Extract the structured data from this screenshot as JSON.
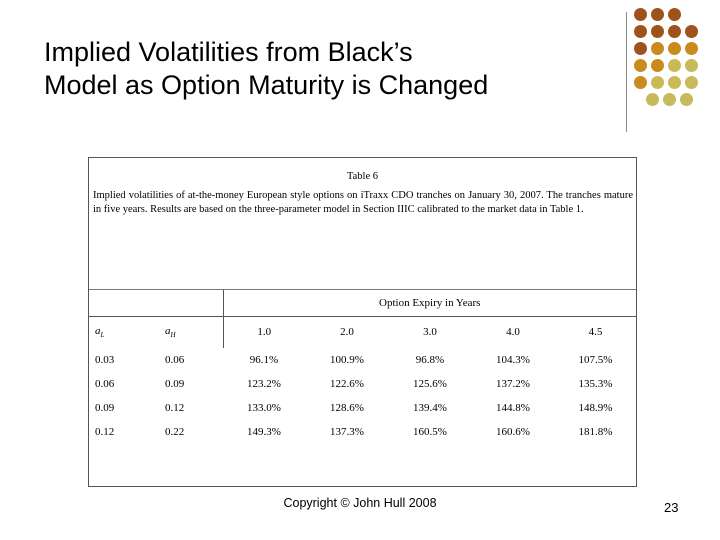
{
  "slide": {
    "title_line1": "Implied Volatilities from Black’s",
    "title_line2": "Model as Option Maturity is Changed",
    "footer": "Copyright © John Hull 2008",
    "page_number": "23"
  },
  "decoration": {
    "dot_colors": [
      "#a0521c",
      "#c98a1e",
      "#c8ba58"
    ]
  },
  "table": {
    "caption_title": "Table 6",
    "caption_text": "Implied volatilities of at-the-money European style options on iTraxx CDO tranches on January 30, 2007. The tranches mature in five years. Results are based on the three-parameter model in Section IIIC calibrated to the market data in Table 1.",
    "group_header": "Option Expiry in Years",
    "col_aL": {
      "symbol": "a",
      "sub": "L"
    },
    "col_aH": {
      "symbol": "a",
      "sub": "H"
    },
    "expiry_headers": [
      "1.0",
      "2.0",
      "3.0",
      "4.0",
      "4.5"
    ],
    "rows": [
      {
        "aL": "0.03",
        "aH": "0.06",
        "values": [
          "96.1%",
          "100.9%",
          "96.8%",
          "104.3%",
          "107.5%"
        ]
      },
      {
        "aL": "0.06",
        "aH": "0.09",
        "values": [
          "123.2%",
          "122.6%",
          "125.6%",
          "137.2%",
          "135.3%"
        ]
      },
      {
        "aL": "0.09",
        "aH": "0.12",
        "values": [
          "133.0%",
          "128.6%",
          "139.4%",
          "144.8%",
          "148.9%"
        ]
      },
      {
        "aL": "0.12",
        "aH": "0.22",
        "values": [
          "149.3%",
          "137.3%",
          "160.5%",
          "160.6%",
          "181.8%"
        ]
      }
    ]
  }
}
